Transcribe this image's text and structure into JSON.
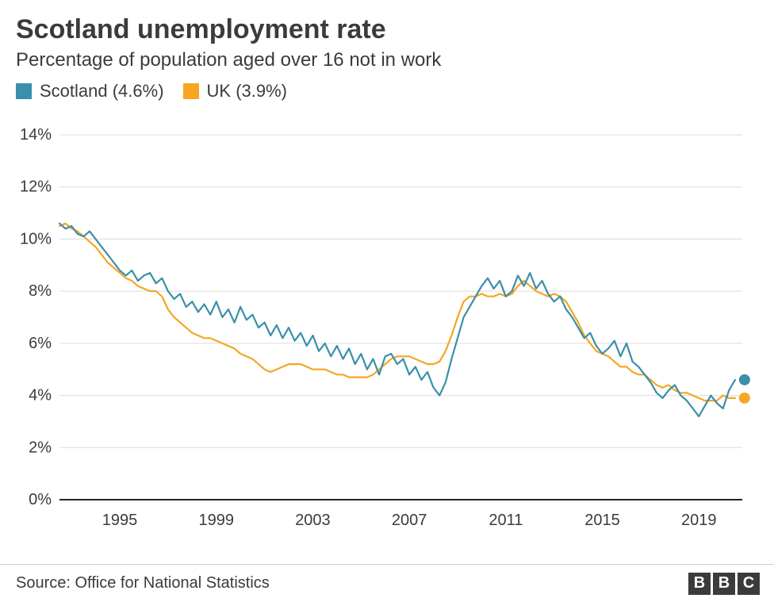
{
  "title": "Scotland unemployment rate",
  "subtitle": "Percentage of population aged over 16 not in work",
  "source": "Source: Office for National Statistics",
  "logo_letters": [
    "B",
    "B",
    "C"
  ],
  "chart": {
    "type": "line",
    "background_color": "#ffffff",
    "grid_color": "#dcdcdc",
    "baseline_color": "#222222",
    "axis_text_color": "#3b3b3b",
    "axis_fontsize": 20,
    "x": {
      "min": 1992.5,
      "max": 2020.8,
      "ticks": [
        1995,
        1999,
        2003,
        2007,
        2011,
        2015,
        2019
      ]
    },
    "y": {
      "min": 0,
      "max": 14,
      "ticks": [
        0,
        2,
        4,
        6,
        8,
        10,
        12,
        14
      ],
      "suffix": "%"
    },
    "line_width": 2.2,
    "end_marker_radius": 7,
    "series": [
      {
        "name": "Scotland",
        "legend_label": "Scotland (4.6%)",
        "color": "#3a8faa",
        "end_value": 4.6,
        "data": [
          [
            1992.5,
            10.6
          ],
          [
            1992.75,
            10.4
          ],
          [
            1993.0,
            10.5
          ],
          [
            1993.25,
            10.2
          ],
          [
            1993.5,
            10.1
          ],
          [
            1993.75,
            10.3
          ],
          [
            1994.0,
            10.0
          ],
          [
            1994.25,
            9.7
          ],
          [
            1994.5,
            9.4
          ],
          [
            1994.75,
            9.1
          ],
          [
            1995.0,
            8.8
          ],
          [
            1995.25,
            8.6
          ],
          [
            1995.5,
            8.8
          ],
          [
            1995.75,
            8.4
          ],
          [
            1996.0,
            8.6
          ],
          [
            1996.25,
            8.7
          ],
          [
            1996.5,
            8.3
          ],
          [
            1996.75,
            8.5
          ],
          [
            1997.0,
            8.0
          ],
          [
            1997.25,
            7.7
          ],
          [
            1997.5,
            7.9
          ],
          [
            1997.75,
            7.4
          ],
          [
            1998.0,
            7.6
          ],
          [
            1998.25,
            7.2
          ],
          [
            1998.5,
            7.5
          ],
          [
            1998.75,
            7.1
          ],
          [
            1999.0,
            7.6
          ],
          [
            1999.25,
            7.0
          ],
          [
            1999.5,
            7.3
          ],
          [
            1999.75,
            6.8
          ],
          [
            2000.0,
            7.4
          ],
          [
            2000.25,
            6.9
          ],
          [
            2000.5,
            7.1
          ],
          [
            2000.75,
            6.6
          ],
          [
            2001.0,
            6.8
          ],
          [
            2001.25,
            6.3
          ],
          [
            2001.5,
            6.7
          ],
          [
            2001.75,
            6.2
          ],
          [
            2002.0,
            6.6
          ],
          [
            2002.25,
            6.1
          ],
          [
            2002.5,
            6.4
          ],
          [
            2002.75,
            5.9
          ],
          [
            2003.0,
            6.3
          ],
          [
            2003.25,
            5.7
          ],
          [
            2003.5,
            6.0
          ],
          [
            2003.75,
            5.5
          ],
          [
            2004.0,
            5.9
          ],
          [
            2004.25,
            5.4
          ],
          [
            2004.5,
            5.8
          ],
          [
            2004.75,
            5.2
          ],
          [
            2005.0,
            5.6
          ],
          [
            2005.25,
            5.0
          ],
          [
            2005.5,
            5.4
          ],
          [
            2005.75,
            4.8
          ],
          [
            2006.0,
            5.5
          ],
          [
            2006.25,
            5.6
          ],
          [
            2006.5,
            5.2
          ],
          [
            2006.75,
            5.4
          ],
          [
            2007.0,
            4.8
          ],
          [
            2007.25,
            5.1
          ],
          [
            2007.5,
            4.6
          ],
          [
            2007.75,
            4.9
          ],
          [
            2008.0,
            4.3
          ],
          [
            2008.25,
            4.0
          ],
          [
            2008.5,
            4.5
          ],
          [
            2008.75,
            5.4
          ],
          [
            2009.0,
            6.2
          ],
          [
            2009.25,
            7.0
          ],
          [
            2009.5,
            7.4
          ],
          [
            2009.75,
            7.8
          ],
          [
            2010.0,
            8.2
          ],
          [
            2010.25,
            8.5
          ],
          [
            2010.5,
            8.1
          ],
          [
            2010.75,
            8.4
          ],
          [
            2011.0,
            7.8
          ],
          [
            2011.25,
            8.0
          ],
          [
            2011.5,
            8.6
          ],
          [
            2011.75,
            8.2
          ],
          [
            2012.0,
            8.7
          ],
          [
            2012.25,
            8.1
          ],
          [
            2012.5,
            8.4
          ],
          [
            2012.75,
            7.9
          ],
          [
            2013.0,
            7.6
          ],
          [
            2013.25,
            7.8
          ],
          [
            2013.5,
            7.3
          ],
          [
            2013.75,
            7.0
          ],
          [
            2014.0,
            6.6
          ],
          [
            2014.25,
            6.2
          ],
          [
            2014.5,
            6.4
          ],
          [
            2014.75,
            5.9
          ],
          [
            2015.0,
            5.6
          ],
          [
            2015.25,
            5.8
          ],
          [
            2015.5,
            6.1
          ],
          [
            2015.75,
            5.5
          ],
          [
            2016.0,
            6.0
          ],
          [
            2016.25,
            5.3
          ],
          [
            2016.5,
            5.1
          ],
          [
            2016.75,
            4.8
          ],
          [
            2017.0,
            4.5
          ],
          [
            2017.25,
            4.1
          ],
          [
            2017.5,
            3.9
          ],
          [
            2017.75,
            4.2
          ],
          [
            2018.0,
            4.4
          ],
          [
            2018.25,
            4.0
          ],
          [
            2018.5,
            3.8
          ],
          [
            2018.75,
            3.5
          ],
          [
            2019.0,
            3.2
          ],
          [
            2019.25,
            3.6
          ],
          [
            2019.5,
            4.0
          ],
          [
            2019.75,
            3.7
          ],
          [
            2020.0,
            3.5
          ],
          [
            2020.25,
            4.2
          ],
          [
            2020.5,
            4.6
          ]
        ]
      },
      {
        "name": "UK",
        "legend_label": "UK (3.9%)",
        "color": "#f5a623",
        "end_value": 3.9,
        "data": [
          [
            1992.5,
            10.5
          ],
          [
            1992.75,
            10.6
          ],
          [
            1993.0,
            10.4
          ],
          [
            1993.25,
            10.3
          ],
          [
            1993.5,
            10.1
          ],
          [
            1993.75,
            9.9
          ],
          [
            1994.0,
            9.7
          ],
          [
            1994.25,
            9.4
          ],
          [
            1994.5,
            9.1
          ],
          [
            1994.75,
            8.9
          ],
          [
            1995.0,
            8.7
          ],
          [
            1995.25,
            8.5
          ],
          [
            1995.5,
            8.4
          ],
          [
            1995.75,
            8.2
          ],
          [
            1996.0,
            8.1
          ],
          [
            1996.25,
            8.0
          ],
          [
            1996.5,
            8.0
          ],
          [
            1996.75,
            7.8
          ],
          [
            1997.0,
            7.3
          ],
          [
            1997.25,
            7.0
          ],
          [
            1997.5,
            6.8
          ],
          [
            1997.75,
            6.6
          ],
          [
            1998.0,
            6.4
          ],
          [
            1998.25,
            6.3
          ],
          [
            1998.5,
            6.2
          ],
          [
            1998.75,
            6.2
          ],
          [
            1999.0,
            6.1
          ],
          [
            1999.25,
            6.0
          ],
          [
            1999.5,
            5.9
          ],
          [
            1999.75,
            5.8
          ],
          [
            2000.0,
            5.6
          ],
          [
            2000.25,
            5.5
          ],
          [
            2000.5,
            5.4
          ],
          [
            2000.75,
            5.2
          ],
          [
            2001.0,
            5.0
          ],
          [
            2001.25,
            4.9
          ],
          [
            2001.5,
            5.0
          ],
          [
            2001.75,
            5.1
          ],
          [
            2002.0,
            5.2
          ],
          [
            2002.25,
            5.2
          ],
          [
            2002.5,
            5.2
          ],
          [
            2002.75,
            5.1
          ],
          [
            2003.0,
            5.0
          ],
          [
            2003.25,
            5.0
          ],
          [
            2003.5,
            5.0
          ],
          [
            2003.75,
            4.9
          ],
          [
            2004.0,
            4.8
          ],
          [
            2004.25,
            4.8
          ],
          [
            2004.5,
            4.7
          ],
          [
            2004.75,
            4.7
          ],
          [
            2005.0,
            4.7
          ],
          [
            2005.25,
            4.7
          ],
          [
            2005.5,
            4.8
          ],
          [
            2005.75,
            5.0
          ],
          [
            2006.0,
            5.2
          ],
          [
            2006.25,
            5.4
          ],
          [
            2006.5,
            5.5
          ],
          [
            2006.75,
            5.5
          ],
          [
            2007.0,
            5.5
          ],
          [
            2007.25,
            5.4
          ],
          [
            2007.5,
            5.3
          ],
          [
            2007.75,
            5.2
          ],
          [
            2008.0,
            5.2
          ],
          [
            2008.25,
            5.3
          ],
          [
            2008.5,
            5.7
          ],
          [
            2008.75,
            6.3
          ],
          [
            2009.0,
            7.0
          ],
          [
            2009.25,
            7.6
          ],
          [
            2009.5,
            7.8
          ],
          [
            2009.75,
            7.8
          ],
          [
            2010.0,
            7.9
          ],
          [
            2010.25,
            7.8
          ],
          [
            2010.5,
            7.8
          ],
          [
            2010.75,
            7.9
          ],
          [
            2011.0,
            7.8
          ],
          [
            2011.25,
            7.9
          ],
          [
            2011.5,
            8.2
          ],
          [
            2011.75,
            8.4
          ],
          [
            2012.0,
            8.2
          ],
          [
            2012.25,
            8.0
          ],
          [
            2012.5,
            7.9
          ],
          [
            2012.75,
            7.8
          ],
          [
            2013.0,
            7.9
          ],
          [
            2013.25,
            7.8
          ],
          [
            2013.5,
            7.6
          ],
          [
            2013.75,
            7.2
          ],
          [
            2014.0,
            6.8
          ],
          [
            2014.25,
            6.3
          ],
          [
            2014.5,
            6.0
          ],
          [
            2014.75,
            5.7
          ],
          [
            2015.0,
            5.6
          ],
          [
            2015.25,
            5.5
          ],
          [
            2015.5,
            5.3
          ],
          [
            2015.75,
            5.1
          ],
          [
            2016.0,
            5.1
          ],
          [
            2016.25,
            4.9
          ],
          [
            2016.5,
            4.8
          ],
          [
            2016.75,
            4.8
          ],
          [
            2017.0,
            4.6
          ],
          [
            2017.25,
            4.4
          ],
          [
            2017.5,
            4.3
          ],
          [
            2017.75,
            4.4
          ],
          [
            2018.0,
            4.2
          ],
          [
            2018.25,
            4.1
          ],
          [
            2018.5,
            4.1
          ],
          [
            2018.75,
            4.0
          ],
          [
            2019.0,
            3.9
          ],
          [
            2019.25,
            3.8
          ],
          [
            2019.5,
            3.8
          ],
          [
            2019.75,
            3.8
          ],
          [
            2020.0,
            4.0
          ],
          [
            2020.25,
            3.9
          ],
          [
            2020.5,
            3.9
          ]
        ]
      }
    ]
  }
}
